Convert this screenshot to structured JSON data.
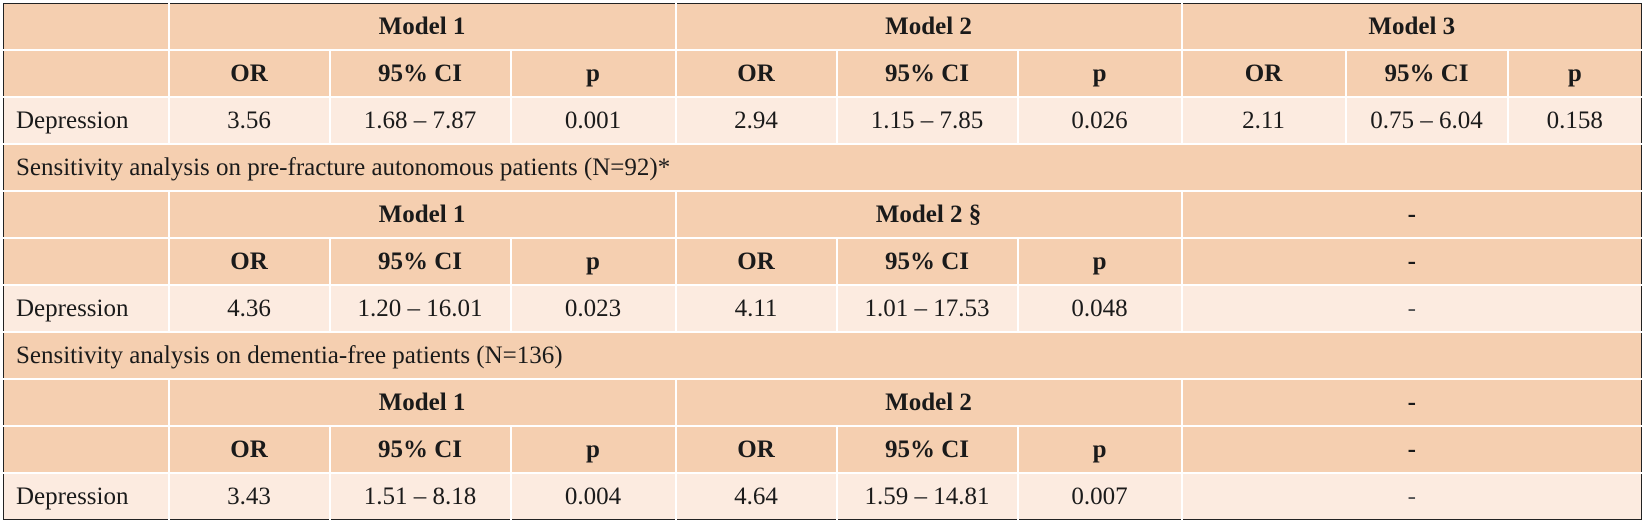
{
  "table": {
    "block1": {
      "models": [
        "Model 1",
        "Model 2",
        "Model 3"
      ],
      "columns": [
        "OR",
        "95% CI",
        "p"
      ],
      "row": {
        "label": "Depression",
        "values": [
          "3.56",
          "1.68 – 7.87",
          "0.001",
          "2.94",
          "1.15 – 7.85",
          "0.026",
          "2.11",
          "0.75 – 6.04",
          "0.158"
        ]
      }
    },
    "section2_title": "Sensitivity analysis on pre-fracture autonomous patients (N=92)*",
    "block2": {
      "models": [
        "Model 1",
        "Model 2 §",
        "-"
      ],
      "columns": [
        "OR",
        "95% CI",
        "p"
      ],
      "dash_header": "-",
      "row": {
        "label": "Depression",
        "values": [
          "4.36",
          "1.20 – 16.01",
          "0.023",
          "4.11",
          "1.01 – 17.53",
          "0.048"
        ],
        "empty": "-"
      }
    },
    "section3_title": "Sensitivity analysis on dementia-free patients (N=136)",
    "block3": {
      "models": [
        "Model 1",
        "Model 2",
        "-"
      ],
      "columns": [
        "OR",
        "95% CI",
        "p"
      ],
      "dash_header": "-",
      "row": {
        "label": "Depression",
        "values": [
          "3.43",
          "1.51 – 8.18",
          "0.004",
          "4.64",
          "1.59 – 14.81",
          "0.007"
        ],
        "empty": "-"
      }
    }
  }
}
